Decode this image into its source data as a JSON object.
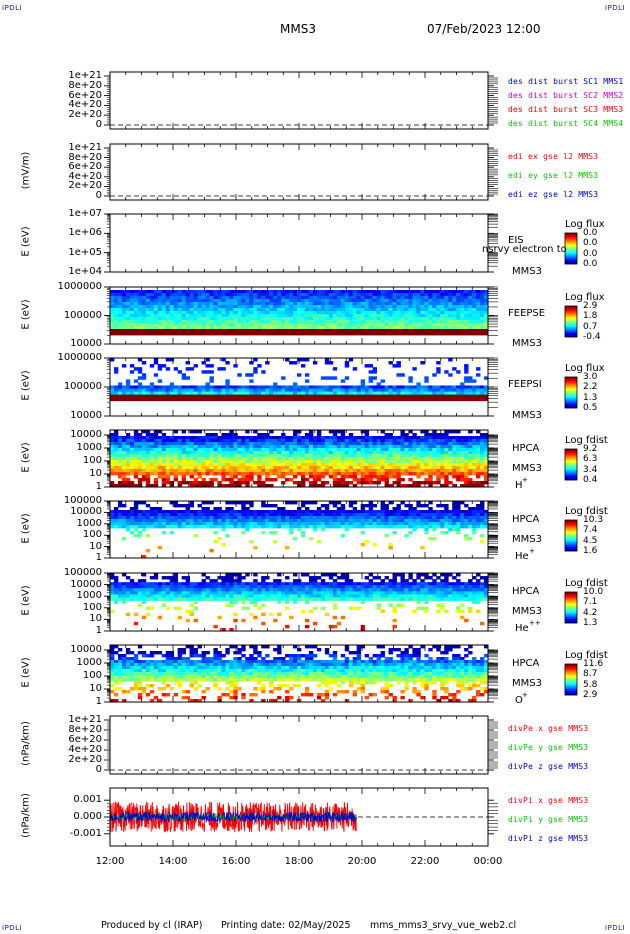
{
  "header": {
    "corner_label": "IPDLI",
    "spacecraft": "MMS3",
    "datetime": "07/Feb/2023 12:00"
  },
  "footer": {
    "produced_by": "Produced by cl (IRAP)",
    "printing_date": "Printing date: 02/May/2025",
    "script": "mms_mms3_srvy_vue_web2.cl"
  },
  "colors": {
    "blue": "#0000cc",
    "magenta": "#cc00cc",
    "red": "#ff0000",
    "green": "#00cc00"
  },
  "chart_data": [
    {
      "type": "line",
      "ylabel": "",
      "yticks": [
        "1e+21",
        "8e+20",
        "6e+20",
        "4e+20",
        "2e+20",
        "0"
      ],
      "ylim": [
        0,
        1e+21
      ],
      "series": [
        {
          "name": "des dist burst SC1 MMS1",
          "color": "#0000cc"
        },
        {
          "name": "des dist burst SC2 MMS2",
          "color": "#cc00cc"
        },
        {
          "name": "des dist burst SC3 MMS3",
          "color": "#ff0000"
        },
        {
          "name": "des dist burst SC4 MMS4",
          "color": "#00cc00"
        }
      ],
      "zero_line": "dashed"
    },
    {
      "type": "line",
      "ylabel": "(mV/m)",
      "yticks": [
        "1e+21",
        "8e+20",
        "6e+20",
        "4e+20",
        "2e+20",
        "0"
      ],
      "ylim": [
        0,
        1e+21
      ],
      "series": [
        {
          "name": "edi ex gse l2 MMS3",
          "color": "#ff0000"
        },
        {
          "name": "edi ey gse l2 MMS3",
          "color": "#00cc00"
        },
        {
          "name": "edi ez gse l2 MMS3",
          "color": "#0000cc"
        }
      ],
      "zero_line": "dashed"
    },
    {
      "type": "heatmap",
      "ylabel": "E (eV)",
      "yticks": [
        "1e+07",
        "1e+06",
        "1e+05",
        "1e+04"
      ],
      "ylim": [
        10000,
        10000000
      ],
      "scale": "log",
      "instrument": [
        "EIS",
        "MMS3"
      ],
      "overlay_text": "nsrvy electron to",
      "colorbar": {
        "title": "Log flux",
        "ticks": [
          "0.0",
          "0.0",
          "0.0",
          "0.0"
        ]
      },
      "data_coverage": "none"
    },
    {
      "type": "heatmap",
      "ylabel": "E (eV)",
      "yticks": [
        "1000000",
        "100000",
        "10000"
      ],
      "ylim": [
        10000,
        1000000
      ],
      "scale": "log",
      "instrument": [
        "FEEPSE",
        "MMS3"
      ],
      "colorbar": {
        "title": "Log flux",
        "ticks": [
          "2.9",
          "1.8",
          "0.7",
          "-0.4"
        ]
      },
      "data_coverage": "12:00-24:00"
    },
    {
      "type": "heatmap",
      "ylabel": "E (eV)",
      "yticks": [
        "1000000",
        "100000",
        "10000"
      ],
      "ylim": [
        10000,
        1000000
      ],
      "scale": "log",
      "instrument": [
        "FEEPSI",
        "MMS3"
      ],
      "colorbar": {
        "title": "Log flux",
        "ticks": [
          "3.0",
          "2.2",
          "1.3",
          "0.5"
        ]
      },
      "data_coverage": "12:00-24:00"
    },
    {
      "type": "heatmap",
      "ylabel": "E (eV)",
      "yticks": [
        "10000",
        "1000",
        "100",
        "10",
        "1"
      ],
      "ylim": [
        1,
        30000
      ],
      "scale": "log",
      "instrument": [
        "HPCA",
        "MMS3",
        "H",
        "+"
      ],
      "colorbar": {
        "title": "Log fdist",
        "ticks": [
          "9.2",
          "6.3",
          "3.4",
          "0.4"
        ]
      },
      "data_coverage": "12:00-24:00"
    },
    {
      "type": "heatmap",
      "ylabel": "E (eV)",
      "yticks": [
        "100000",
        "10000",
        "1000",
        "100",
        "10",
        "1"
      ],
      "ylim": [
        1,
        100000
      ],
      "scale": "log",
      "instrument": [
        "HPCA",
        "MMS3",
        "He",
        "+"
      ],
      "colorbar": {
        "title": "Log fdist",
        "ticks": [
          "10.3",
          "7.4",
          "4.5",
          "1.6"
        ]
      },
      "data_coverage": "12:00-24:00"
    },
    {
      "type": "heatmap",
      "ylabel": "E (eV)",
      "yticks": [
        "100000",
        "10000",
        "1000",
        "100",
        "10",
        "1"
      ],
      "ylim": [
        1,
        100000
      ],
      "scale": "log",
      "instrument": [
        "HPCA",
        "MMS3",
        "He",
        "++"
      ],
      "colorbar": {
        "title": "Log fdist",
        "ticks": [
          "10.0",
          "7.1",
          "4.2",
          "1.3"
        ]
      },
      "data_coverage": "12:00-24:00"
    },
    {
      "type": "heatmap",
      "ylabel": "E (eV)",
      "yticks": [
        "10000",
        "1000",
        "100",
        "10",
        "1"
      ],
      "ylim": [
        1,
        30000
      ],
      "scale": "log",
      "instrument": [
        "HPCA",
        "MMS3",
        "O",
        "+"
      ],
      "colorbar": {
        "title": "Log fdist",
        "ticks": [
          "11.6",
          "8.7",
          "5.8",
          "2.9"
        ]
      },
      "data_coverage": "12:00-24:00"
    },
    {
      "type": "line",
      "ylabel": "(nPa/km)",
      "yticks": [
        "1e+21",
        "8e+20",
        "6e+20",
        "4e+20",
        "2e+20",
        "0"
      ],
      "ylim": [
        0,
        1e+21
      ],
      "series": [
        {
          "name": "divPe x gse MMS3",
          "color": "#ff0000"
        },
        {
          "name": "divPe y gse MMS3",
          "color": "#00cc00"
        },
        {
          "name": "divPe z gse MMS3",
          "color": "#0000cc"
        }
      ],
      "zero_line": "dashed"
    },
    {
      "type": "line",
      "ylabel": "(nPa/km)",
      "yticks": [
        "0.001",
        "0.000",
        "-0.001"
      ],
      "ylim": [
        -0.0017,
        0.0017
      ],
      "series": [
        {
          "name": "divPi x gse MMS3",
          "color": "#ff0000",
          "amplitude": 0.0009
        },
        {
          "name": "divPi y gse MMS3",
          "color": "#00cc00",
          "amplitude": 0.0002
        },
        {
          "name": "divPi z gse MMS3",
          "color": "#0000cc",
          "amplitude": 0.0003
        }
      ],
      "data_coverage": "12:00-19:50",
      "zero_line": "dashed"
    }
  ],
  "x_axis": {
    "ticks": [
      "12:00",
      "14:00",
      "16:00",
      "18:00",
      "20:00",
      "22:00",
      "00:00"
    ],
    "range": [
      "12:00",
      "00:00"
    ]
  }
}
